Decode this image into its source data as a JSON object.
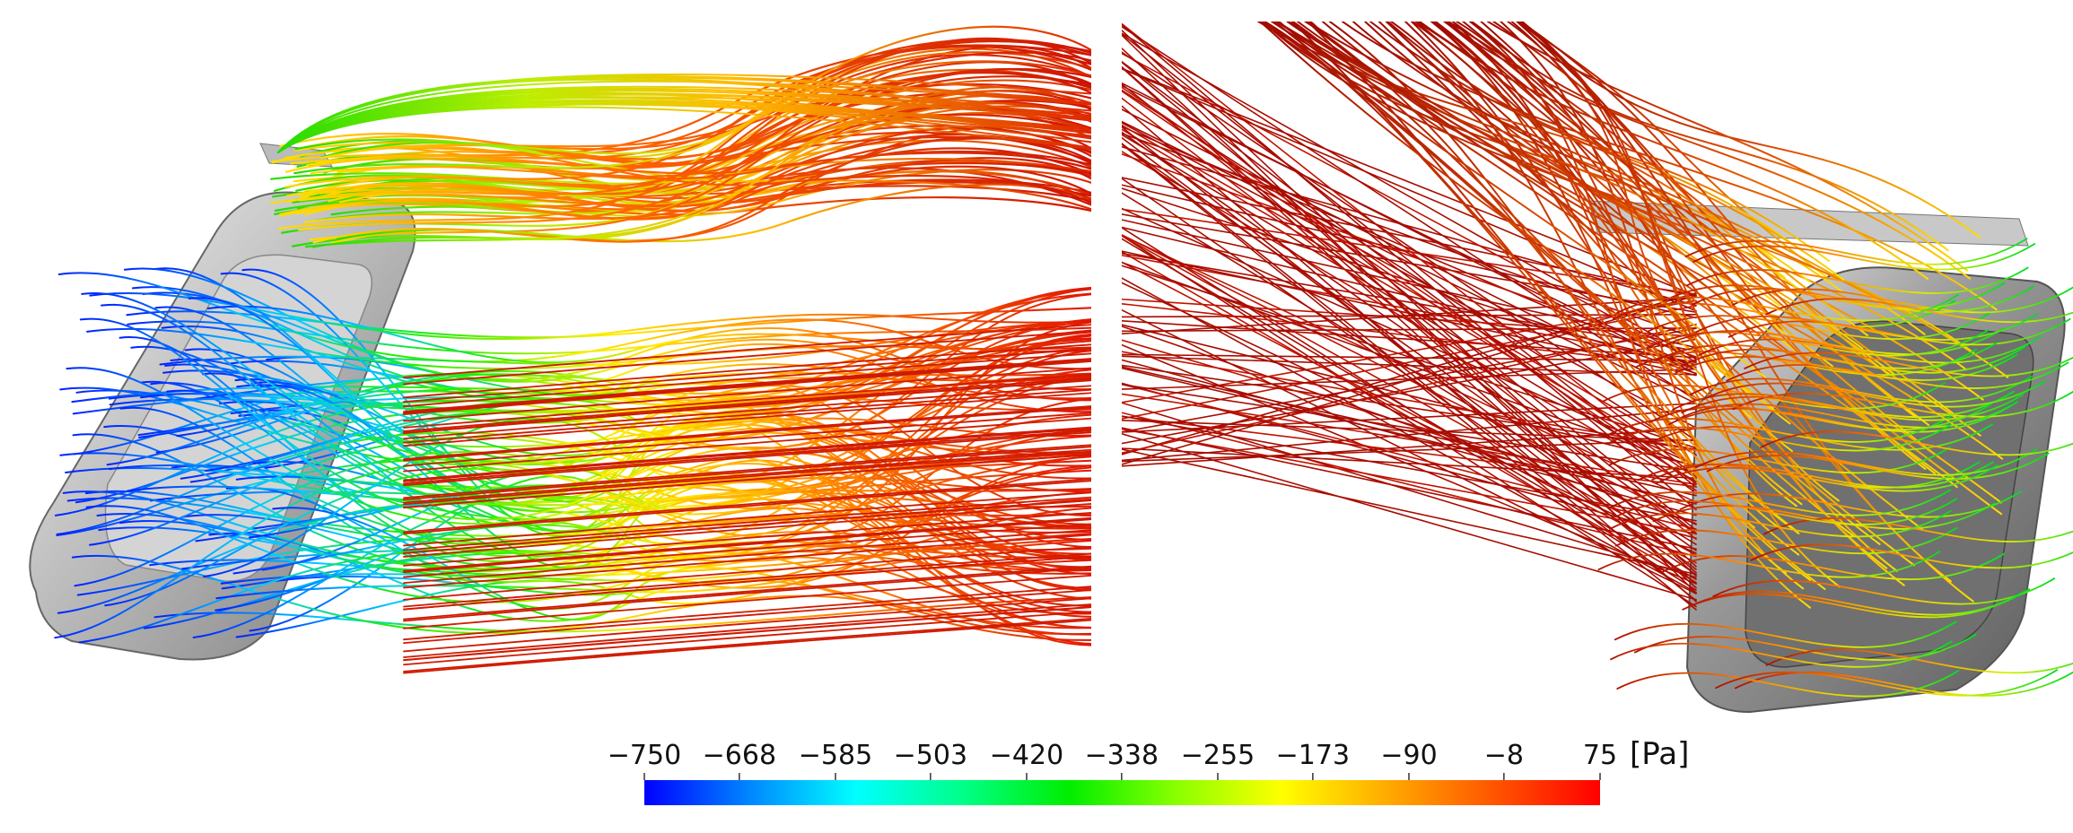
{
  "colorbar": {
    "unit": "[Pa]",
    "min": -750,
    "max": 75,
    "tick_labels": [
      "−750",
      "−668",
      "−585",
      "−503",
      "−420",
      "−338",
      "−255",
      "−173",
      "−90",
      "−8",
      "75"
    ],
    "tick_values": [
      -750,
      -668,
      -585,
      -503,
      -420,
      -338,
      -255,
      -173,
      -90,
      -8,
      75
    ],
    "colormap": [
      "#0000ff",
      "#0088ff",
      "#00ffff",
      "#00ff88",
      "#00ee00",
      "#88ff00",
      "#ffff00",
      "#ffaa00",
      "#ff5500",
      "#ff0000"
    ]
  },
  "panels": [
    {
      "view": "left-vehicle-streamlines"
    },
    {
      "view": "right-vehicle-streamlines"
    }
  ]
}
